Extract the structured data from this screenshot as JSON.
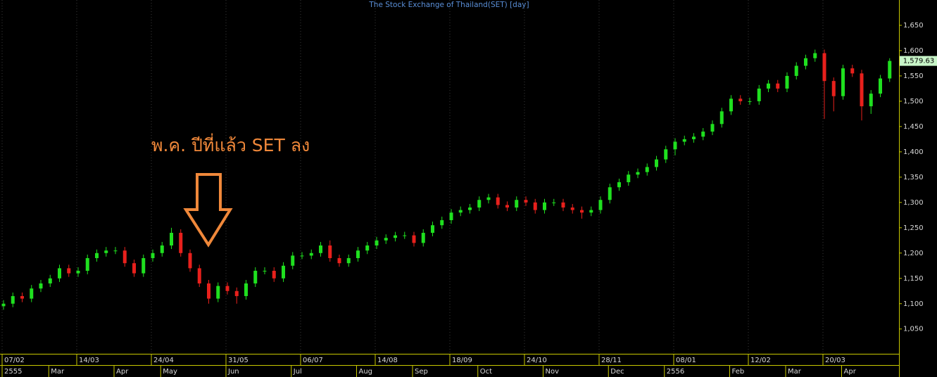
{
  "chart_data": {
    "type": "candlestick",
    "title": "The Stock Exchange of Thailand(SET) [day]",
    "annotation": "พ.ค. ปีที่แล้ว SET ลง",
    "up_color": "#1fe01f",
    "down_color": "#e8201c",
    "annotation_color": "#f0883a",
    "ylim": [
      1001,
      1700
    ],
    "yticks": [
      {
        "value": 1050,
        "label": "1,050"
      },
      {
        "value": 1100,
        "label": "1,100"
      },
      {
        "value": 1150,
        "label": "1,150"
      },
      {
        "value": 1200,
        "label": "1,200"
      },
      {
        "value": 1250,
        "label": "1,250"
      },
      {
        "value": 1300,
        "label": "1,300"
      },
      {
        "value": 1350,
        "label": "1,350"
      },
      {
        "value": 1400,
        "label": "1,400"
      },
      {
        "value": 1450,
        "label": "1,450"
      },
      {
        "value": 1500,
        "label": "1,500"
      },
      {
        "value": 1550,
        "label": "1,550"
      },
      {
        "value": 1600,
        "label": "1,600"
      },
      {
        "value": 1650,
        "label": "1,650"
      }
    ],
    "last_label": {
      "value": 1579.63,
      "label": "1,579.63"
    },
    "categories": [
      "07/02",
      null,
      null,
      null,
      null,
      null,
      null,
      null,
      "14/03",
      null,
      null,
      null,
      null,
      null,
      null,
      null,
      "24/04",
      null,
      null,
      null,
      null,
      null,
      null,
      null,
      "31/05",
      null,
      null,
      null,
      null,
      null,
      null,
      null,
      "06/07",
      null,
      null,
      null,
      null,
      null,
      null,
      null,
      "14/08",
      null,
      null,
      null,
      null,
      null,
      null,
      null,
      "18/09",
      null,
      null,
      null,
      null,
      null,
      null,
      null,
      "24/10",
      null,
      null,
      null,
      null,
      null,
      null,
      null,
      "28/11",
      null,
      null,
      null,
      null,
      null,
      null,
      null,
      "08/01",
      null,
      null,
      null,
      null,
      null,
      null,
      null,
      "12/02",
      null,
      null,
      null,
      null,
      null,
      null,
      null,
      "20/03",
      null,
      null,
      null,
      null,
      null,
      null,
      null
    ],
    "months": [
      "2555",
      null,
      null,
      null,
      null,
      "Mar",
      null,
      null,
      null,
      null,
      null,
      null,
      "Apr",
      null,
      null,
      null,
      null,
      "May",
      null,
      null,
      null,
      null,
      null,
      null,
      "Jun",
      null,
      null,
      null,
      null,
      null,
      null,
      "Jul",
      null,
      null,
      null,
      null,
      null,
      null,
      "Aug",
      null,
      null,
      null,
      null,
      null,
      "Sep",
      null,
      null,
      null,
      null,
      null,
      null,
      "Oct",
      null,
      null,
      null,
      null,
      null,
      null,
      "Nov",
      null,
      null,
      null,
      null,
      null,
      null,
      "Dec",
      null,
      null,
      null,
      null,
      null,
      "2556",
      null,
      null,
      null,
      null,
      null,
      null,
      "Feb",
      null,
      null,
      null,
      null,
      null,
      "Mar",
      null,
      null,
      null,
      null,
      null,
      "Apr",
      null,
      null,
      null,
      null,
      null
    ],
    "open": [
      1095,
      1100,
      1115,
      1110,
      1130,
      1140,
      1150,
      1170,
      1160,
      1165,
      1190,
      1200,
      1205,
      1205,
      1180,
      1160,
      1190,
      1200,
      1215,
      1240,
      1200,
      1170,
      1140,
      1110,
      1135,
      1125,
      1115,
      1140,
      1165,
      1165,
      1150,
      1175,
      1195,
      1195,
      1200,
      1215,
      1190,
      1180,
      1190,
      1205,
      1215,
      1225,
      1230,
      1235,
      1235,
      1220,
      1240,
      1255,
      1265,
      1280,
      1285,
      1290,
      1305,
      1310,
      1295,
      1290,
      1305,
      1300,
      1285,
      1300,
      1300,
      1290,
      1285,
      1280,
      1285,
      1305,
      1330,
      1340,
      1355,
      1360,
      1370,
      1385,
      1405,
      1420,
      1425,
      1430,
      1440,
      1455,
      1480,
      1505,
      1500,
      1500,
      1525,
      1535,
      1525,
      1550,
      1570,
      1585,
      1595,
      1540,
      1510,
      1565,
      1555,
      1490,
      1515,
      1545
    ],
    "high": [
      1107,
      1122,
      1122,
      1137,
      1147,
      1157,
      1177,
      1177,
      1172,
      1197,
      1207,
      1212,
      1212,
      1212,
      1187,
      1197,
      1207,
      1222,
      1250,
      1247,
      1207,
      1177,
      1147,
      1142,
      1142,
      1132,
      1147,
      1172,
      1172,
      1172,
      1182,
      1202,
      1202,
      1207,
      1222,
      1225,
      1197,
      1197,
      1212,
      1222,
      1232,
      1237,
      1242,
      1242,
      1242,
      1247,
      1262,
      1272,
      1287,
      1292,
      1297,
      1312,
      1317,
      1317,
      1302,
      1312,
      1312,
      1307,
      1307,
      1307,
      1307,
      1297,
      1292,
      1292,
      1312,
      1337,
      1347,
      1362,
      1367,
      1377,
      1392,
      1412,
      1427,
      1432,
      1437,
      1447,
      1462,
      1487,
      1512,
      1512,
      1507,
      1532,
      1542,
      1542,
      1557,
      1577,
      1592,
      1602,
      1602,
      1547,
      1572,
      1572,
      1562,
      1522,
      1552,
      1585
    ],
    "low": [
      1088,
      1093,
      1103,
      1103,
      1123,
      1133,
      1143,
      1153,
      1153,
      1158,
      1183,
      1193,
      1198,
      1173,
      1153,
      1153,
      1183,
      1193,
      1208,
      1193,
      1163,
      1133,
      1100,
      1103,
      1118,
      1100,
      1108,
      1133,
      1158,
      1143,
      1143,
      1168,
      1188,
      1188,
      1193,
      1183,
      1173,
      1173,
      1183,
      1198,
      1208,
      1218,
      1223,
      1228,
      1213,
      1213,
      1233,
      1248,
      1258,
      1273,
      1278,
      1283,
      1298,
      1288,
      1283,
      1283,
      1293,
      1278,
      1278,
      1293,
      1283,
      1278,
      1268,
      1273,
      1278,
      1298,
      1323,
      1333,
      1348,
      1353,
      1363,
      1378,
      1393,
      1413,
      1418,
      1423,
      1433,
      1448,
      1473,
      1493,
      1493,
      1493,
      1518,
      1518,
      1518,
      1543,
      1563,
      1578,
      1465,
      1480,
      1503,
      1548,
      1462,
      1475,
      1508,
      1538
    ],
    "close": [
      1100,
      1115,
      1110,
      1130,
      1140,
      1150,
      1170,
      1160,
      1165,
      1190,
      1200,
      1205,
      1205,
      1180,
      1160,
      1190,
      1200,
      1215,
      1240,
      1200,
      1170,
      1140,
      1110,
      1135,
      1125,
      1115,
      1140,
      1165,
      1165,
      1150,
      1175,
      1195,
      1195,
      1200,
      1215,
      1190,
      1180,
      1190,
      1205,
      1215,
      1225,
      1230,
      1235,
      1235,
      1220,
      1240,
      1255,
      1265,
      1280,
      1285,
      1290,
      1305,
      1310,
      1295,
      1290,
      1305,
      1300,
      1285,
      1300,
      1300,
      1290,
      1285,
      1280,
      1285,
      1305,
      1330,
      1340,
      1355,
      1360,
      1370,
      1385,
      1405,
      1420,
      1425,
      1430,
      1440,
      1455,
      1480,
      1505,
      1500,
      1500,
      1525,
      1535,
      1525,
      1550,
      1570,
      1585,
      1595,
      1540,
      1510,
      1565,
      1555,
      1490,
      1515,
      1545,
      1579.63
    ]
  }
}
